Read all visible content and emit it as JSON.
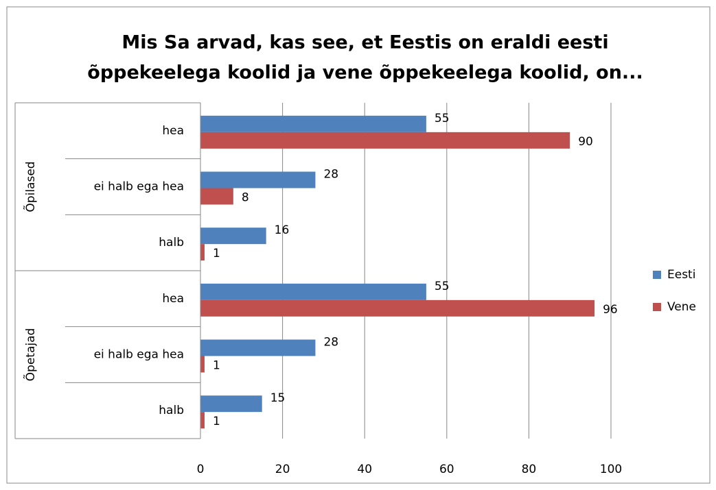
{
  "chart_data": {
    "type": "bar",
    "orientation": "horizontal",
    "title": [
      "Mis Sa arvad, kas see, et Eestis on eraldi eesti",
      "õppekeelega koolid ja vene õppekeelega koolid, on..."
    ],
    "groups": [
      {
        "name": "Õpilased",
        "categories": [
          "hea",
          "ei halb ega hea",
          "halb"
        ]
      },
      {
        "name": "Õpetajad",
        "categories": [
          "hea",
          "ei halb ega hea",
          "halb"
        ]
      }
    ],
    "series": [
      {
        "name": "Eesti",
        "color": "#4f81bd",
        "values": [
          55,
          28,
          16,
          55,
          28,
          15
        ]
      },
      {
        "name": "Vene",
        "color": "#c0504d",
        "values": [
          90,
          8,
          1,
          96,
          1,
          1
        ]
      }
    ],
    "xlim": [
      0,
      100
    ],
    "xticks": [
      0,
      20,
      40,
      60,
      80,
      100
    ],
    "grid": true,
    "legend": "right"
  }
}
